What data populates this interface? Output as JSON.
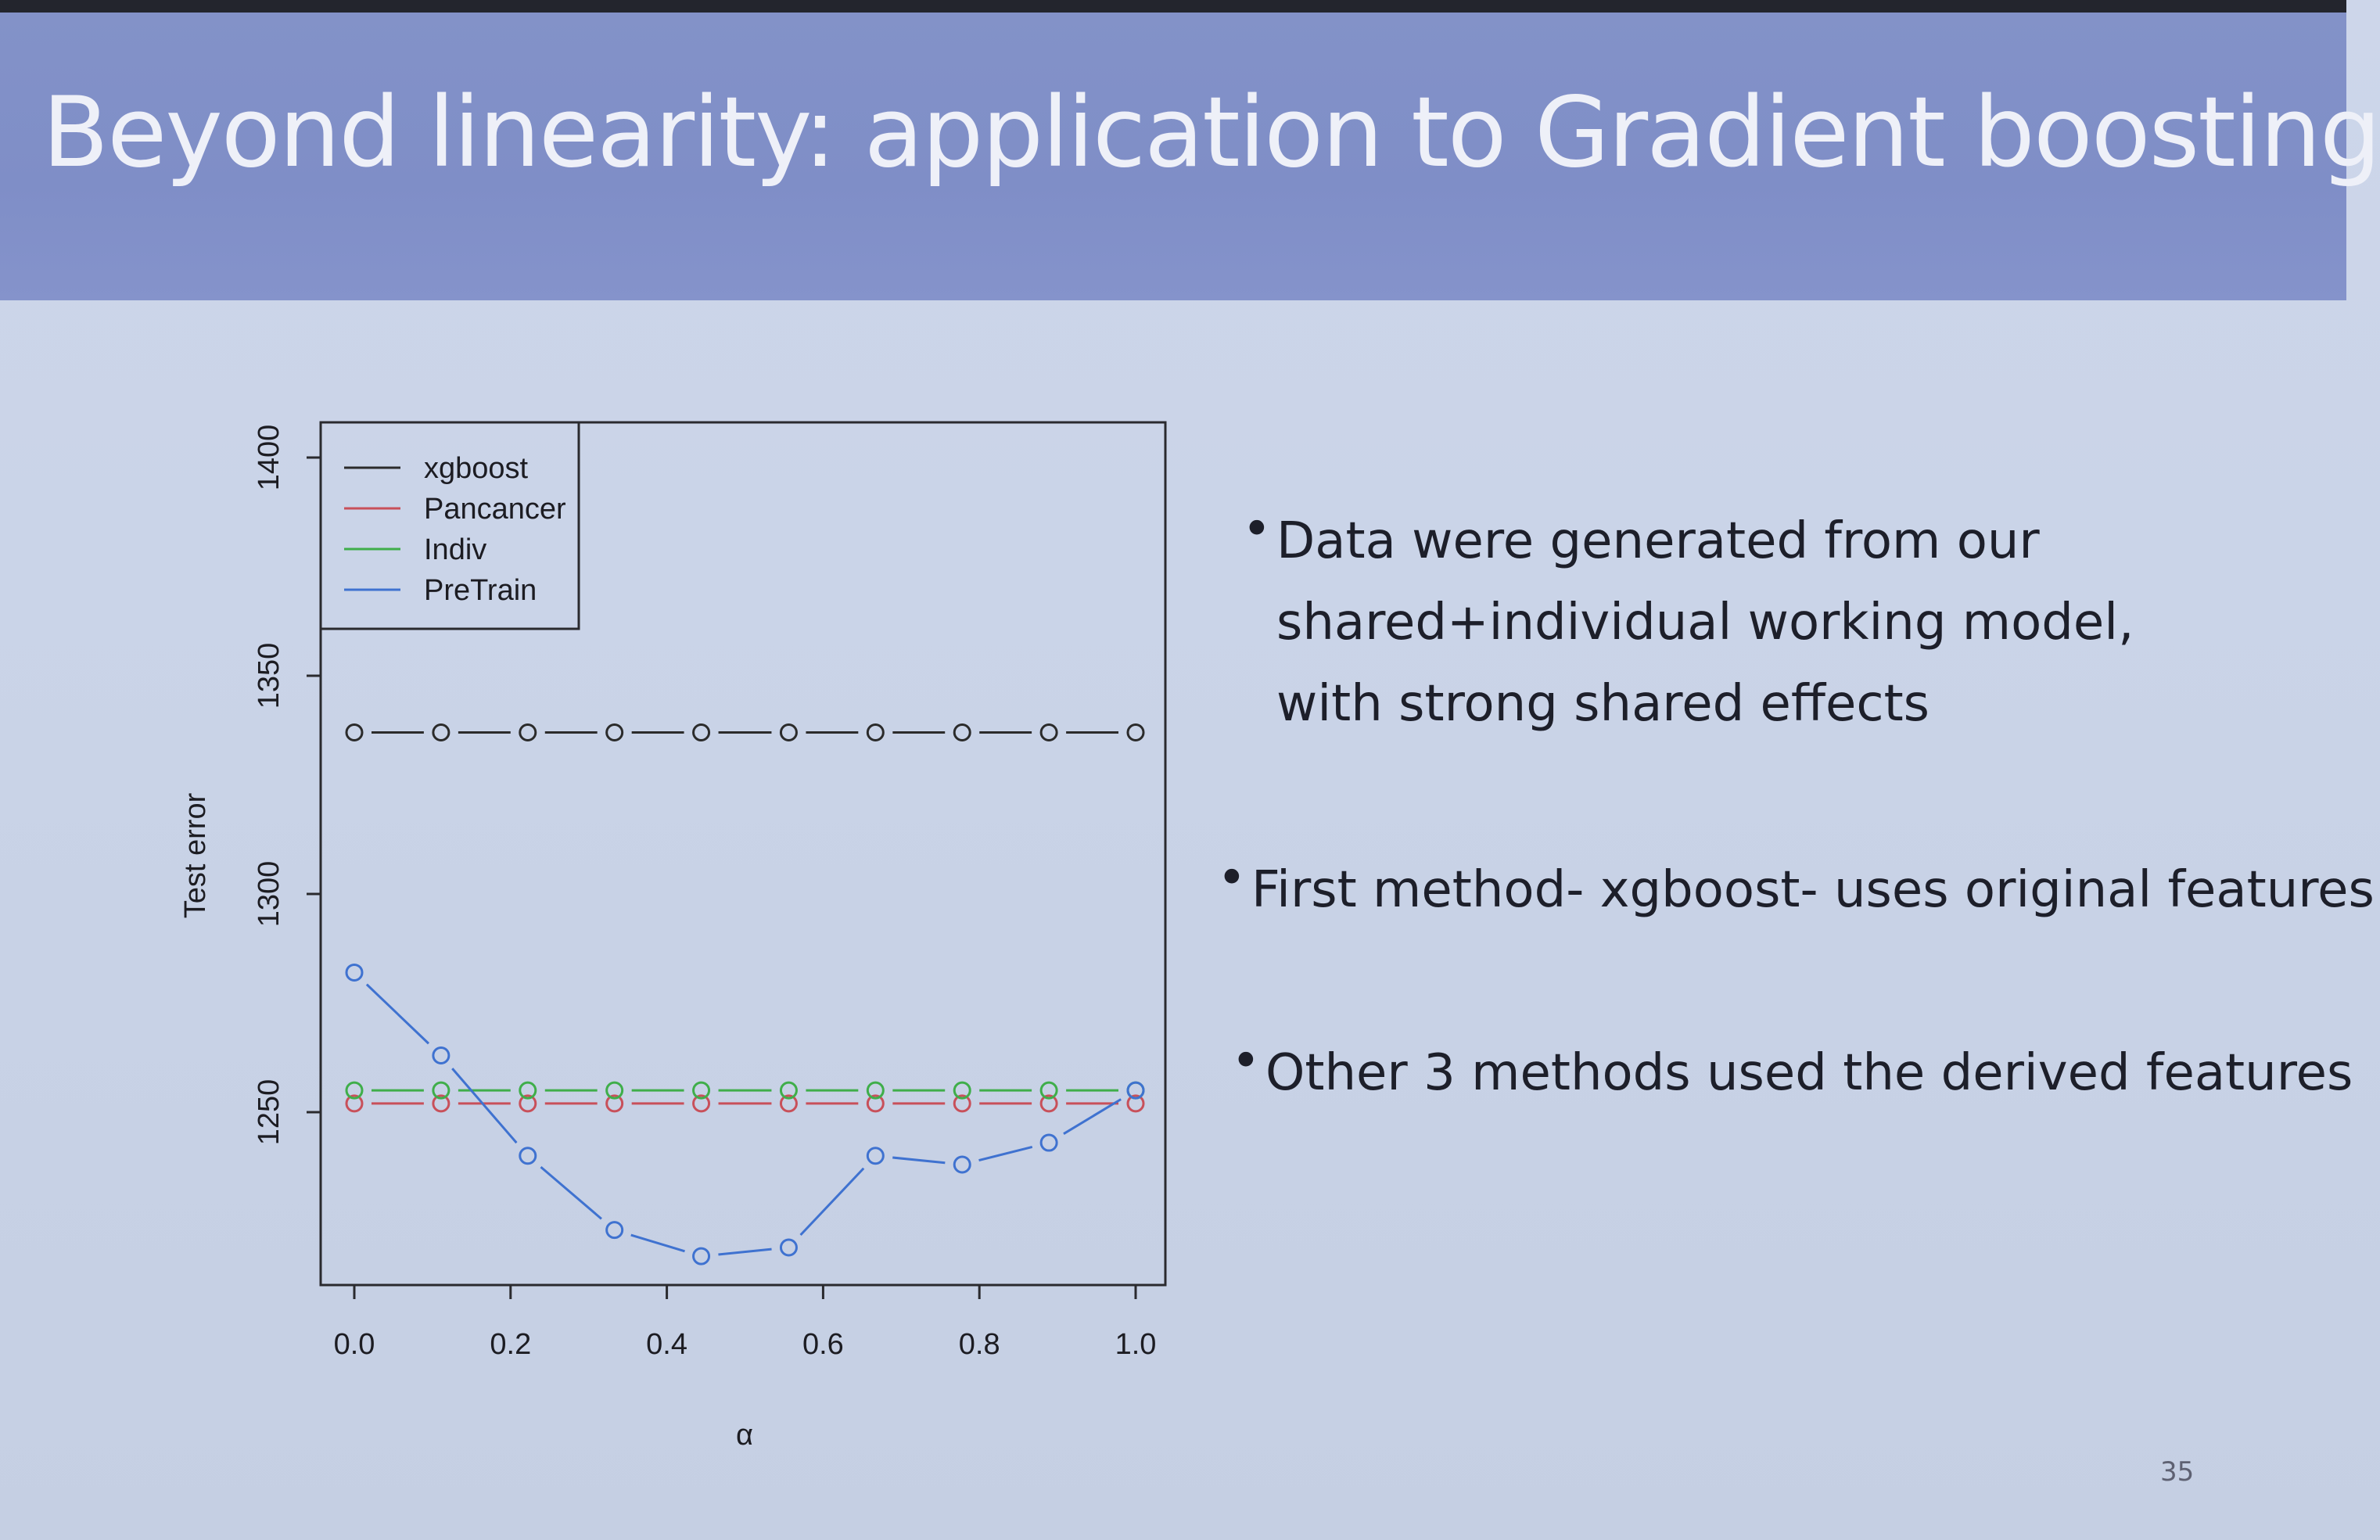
{
  "slide": {
    "title": "Beyond linearity: application to Gradient boosting",
    "page_number": "35",
    "bullets": [
      {
        "lines": [
          "Data were generated from our",
          "shared+individual working model,",
          "with strong shared effects"
        ]
      },
      {
        "lines": [
          "First method- xgboost- uses original features"
        ]
      },
      {
        "lines": [
          "Other 3 methods used the derived features"
        ]
      }
    ]
  },
  "chart_data": {
    "type": "line",
    "title": "",
    "xlabel": "α",
    "ylabel": "Test error",
    "xlim": [
      0,
      1
    ],
    "ylim": [
      1210,
      1405
    ],
    "x_ticks": [
      "0.0",
      "0.2",
      "0.4",
      "0.6",
      "0.8",
      "1.0"
    ],
    "y_ticks": [
      "1250",
      "1300",
      "1350",
      "1400"
    ],
    "x": [
      0.0,
      0.111,
      0.222,
      0.333,
      0.444,
      0.556,
      0.667,
      0.778,
      0.889,
      1.0
    ],
    "legend": {
      "position": "top-left"
    },
    "series": [
      {
        "name": "xgboost",
        "color": "#2b2b2b",
        "values": [
          1337,
          1337,
          1337,
          1337,
          1337,
          1337,
          1337,
          1337,
          1337,
          1337
        ]
      },
      {
        "name": "Pancancer",
        "color": "#c8505a",
        "values": [
          1252,
          1252,
          1252,
          1252,
          1252,
          1252,
          1252,
          1252,
          1252,
          1252
        ]
      },
      {
        "name": "Indiv",
        "color": "#3fae4a",
        "values": [
          1255,
          1255,
          1255,
          1255,
          1255,
          1255,
          1255,
          1255,
          1255,
          1255
        ]
      },
      {
        "name": "PreTrain",
        "color": "#3f72d0",
        "values": [
          1282,
          1263,
          1240,
          1223,
          1217,
          1219,
          1240,
          1238,
          1243,
          1255
        ]
      }
    ]
  }
}
